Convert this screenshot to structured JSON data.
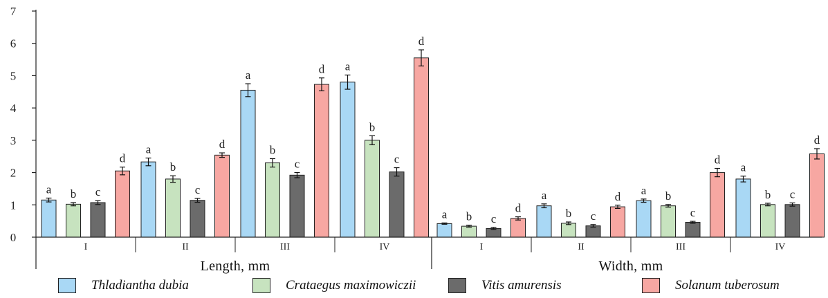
{
  "chart_data": {
    "type": "bar",
    "ylim": [
      0,
      7
    ],
    "yticks": [
      0,
      1,
      2,
      3,
      4,
      5,
      6,
      7
    ],
    "grid": false,
    "legend_position": "bottom",
    "sections": [
      {
        "label": "Length,  mm",
        "groups": [
          {
            "label": "I",
            "bars": [
              {
                "species": "Thladiantha dubia",
                "value": 1.15,
                "err": 0.06,
                "letter": "a"
              },
              {
                "species": "Crataegus maximowiczii",
                "value": 1.02,
                "err": 0.05,
                "letter": "b"
              },
              {
                "species": "Vitis amurensis",
                "value": 1.07,
                "err": 0.06,
                "letter": "c"
              },
              {
                "species": "Solanum tuberosum",
                "value": 2.05,
                "err": 0.12,
                "letter": "d"
              }
            ]
          },
          {
            "label": "II",
            "bars": [
              {
                "species": "Thladiantha dubia",
                "value": 2.33,
                "err": 0.12,
                "letter": "a"
              },
              {
                "species": "Crataegus maximowiczii",
                "value": 1.8,
                "err": 0.1,
                "letter": "b"
              },
              {
                "species": "Vitis amurensis",
                "value": 1.14,
                "err": 0.06,
                "letter": "c"
              },
              {
                "species": "Solanum tuberosum",
                "value": 2.54,
                "err": 0.07,
                "letter": "d"
              }
            ]
          },
          {
            "label": "III",
            "bars": [
              {
                "species": "Thladiantha dubia",
                "value": 4.55,
                "err": 0.2,
                "letter": "a"
              },
              {
                "species": "Crataegus maximowiczii",
                "value": 2.3,
                "err": 0.13,
                "letter": "b"
              },
              {
                "species": "Vitis amurensis",
                "value": 1.92,
                "err": 0.08,
                "letter": "c"
              },
              {
                "species": "Solanum tuberosum",
                "value": 4.73,
                "err": 0.2,
                "letter": "d"
              }
            ]
          },
          {
            "label": "IV",
            "bars": [
              {
                "species": "Thladiantha dubia",
                "value": 4.8,
                "err": 0.22,
                "letter": "a"
              },
              {
                "species": "Crataegus maximowiczii",
                "value": 3.0,
                "err": 0.14,
                "letter": "b"
              },
              {
                "species": "Vitis amurensis",
                "value": 2.02,
                "err": 0.13,
                "letter": "c"
              },
              {
                "species": "Solanum tuberosum",
                "value": 5.55,
                "err": 0.25,
                "letter": "d"
              }
            ]
          }
        ]
      },
      {
        "label": "Width,  mm",
        "groups": [
          {
            "label": "I",
            "bars": [
              {
                "species": "Thladiantha dubia",
                "value": 0.42,
                "err": 0.02,
                "letter": "a"
              },
              {
                "species": "Crataegus maximowiczii",
                "value": 0.34,
                "err": 0.03,
                "letter": "b"
              },
              {
                "species": "Vitis amurensis",
                "value": 0.27,
                "err": 0.03,
                "letter": "c"
              },
              {
                "species": "Solanum tuberosum",
                "value": 0.58,
                "err": 0.05,
                "letter": "d"
              }
            ]
          },
          {
            "label": "II",
            "bars": [
              {
                "species": "Thladiantha dubia",
                "value": 0.97,
                "err": 0.06,
                "letter": "a"
              },
              {
                "species": "Crataegus maximowiczii",
                "value": 0.43,
                "err": 0.04,
                "letter": "b"
              },
              {
                "species": "Vitis amurensis",
                "value": 0.35,
                "err": 0.04,
                "letter": "c"
              },
              {
                "species": "Solanum tuberosum",
                "value": 0.94,
                "err": 0.05,
                "letter": "d"
              }
            ]
          },
          {
            "label": "III",
            "bars": [
              {
                "species": "Thladiantha dubia",
                "value": 1.13,
                "err": 0.05,
                "letter": "a"
              },
              {
                "species": "Crataegus maximowiczii",
                "value": 0.97,
                "err": 0.04,
                "letter": "b"
              },
              {
                "species": "Vitis amurensis",
                "value": 0.46,
                "err": 0.03,
                "letter": "c"
              },
              {
                "species": "Solanum tuberosum",
                "value": 2.0,
                "err": 0.13,
                "letter": "d"
              }
            ]
          },
          {
            "label": "IV",
            "bars": [
              {
                "species": "Thladiantha dubia",
                "value": 1.8,
                "err": 0.09,
                "letter": "a"
              },
              {
                "species": "Crataegus maximowiczii",
                "value": 1.01,
                "err": 0.04,
                "letter": "b"
              },
              {
                "species": "Vitis amurensis",
                "value": 1.01,
                "err": 0.05,
                "letter": "c"
              },
              {
                "species": "Solanum tuberosum",
                "value": 2.58,
                "err": 0.16,
                "letter": "d"
              }
            ]
          }
        ]
      }
    ],
    "legend": [
      {
        "name": "Thladiantha dubia",
        "color": "#a9d8f5"
      },
      {
        "name": "Crataegus maximowiczii",
        "color": "#c7e3bf"
      },
      {
        "name": "Vitis amurensis",
        "color": "#6b6b6b"
      },
      {
        "name": "Solanum tuberosum",
        "color": "#f7a7a2"
      }
    ]
  }
}
